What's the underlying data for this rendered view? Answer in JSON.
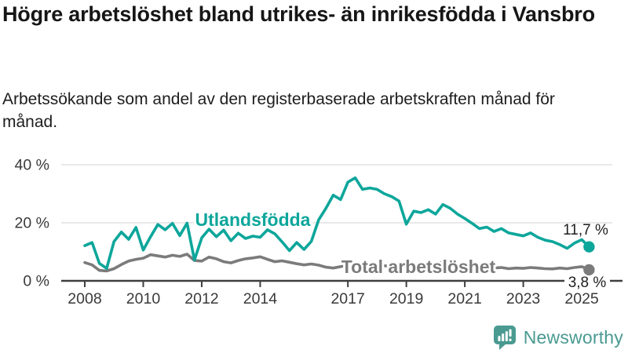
{
  "header": {
    "title": "Högre arbetslöshet bland utrikes- än inrikesfödda i Vansbro",
    "subtitle": "Arbetssökande som andel av den registerbaserade arbetskraften månad för månad."
  },
  "footer": {
    "brand": "Newsworthy",
    "brand_color": "#4a9a91"
  },
  "chart_data": {
    "type": "line",
    "title": "Högre arbetslöshet bland utrikes- än inrikesfödda i Vansbro",
    "subtitle": "Arbetssökande som andel av den registerbaserade arbetskraften månad för månad.",
    "x_unit": "decimal_year",
    "x_start": 2008.0,
    "x_step": 0.25,
    "xlim": [
      2007.2,
      2026.0
    ],
    "ylim": [
      0,
      44
    ],
    "grid": "horizontal",
    "legend": "inline-labels",
    "xticks": [
      2008,
      2010,
      2012,
      2014,
      2017,
      2019,
      2021,
      2023,
      2025
    ],
    "yticks": [
      {
        "value": 0,
        "label": "0 %"
      },
      {
        "value": 20,
        "label": "20 %"
      },
      {
        "value": 40,
        "label": "40 %"
      }
    ],
    "series": [
      {
        "name": "Utlandsfödda",
        "color": "#0da69b",
        "end_label": "11,7 %",
        "end_value": 11.7,
        "values": [
          12.1,
          13.2,
          6.0,
          4.3,
          13.5,
          16.8,
          14.3,
          18.4,
          10.6,
          15.2,
          19.4,
          17.6,
          19.8,
          15.6,
          19.9,
          7.2,
          14.8,
          17.8,
          15.2,
          17.5,
          13.8,
          16.4,
          14.6,
          15.4,
          15.0,
          17.6,
          16.2,
          13.4,
          10.4,
          13.2,
          10.8,
          13.6,
          21.0,
          25.0,
          29.5,
          28.0,
          34.0,
          35.5,
          31.5,
          32.0,
          31.5,
          30.0,
          29.0,
          27.5,
          19.5,
          24.0,
          23.5,
          24.5,
          23.0,
          26.3,
          25.0,
          23.0,
          21.5,
          19.8,
          18.0,
          18.5,
          17.0,
          18.0,
          16.5,
          16.0,
          15.5,
          16.5,
          15.0,
          14.0,
          13.5,
          12.5,
          11.2,
          13.0,
          14.2,
          11.7
        ]
      },
      {
        "name": "Total arbetslöshet",
        "color": "#7b7b7b",
        "end_label": "3,8 %",
        "end_value": 3.8,
        "values": [
          6.3,
          5.5,
          3.6,
          3.4,
          4.2,
          5.6,
          6.8,
          7.4,
          7.8,
          9.0,
          8.6,
          8.2,
          8.8,
          8.4,
          9.2,
          7.0,
          6.8,
          8.2,
          7.6,
          6.6,
          6.2,
          7.0,
          7.6,
          7.9,
          8.3,
          7.4,
          6.6,
          6.9,
          6.4,
          5.9,
          5.5,
          5.8,
          5.4,
          4.7,
          4.4,
          4.9,
          5.3,
          5.7,
          5.4,
          5.8,
          5.6,
          5.2,
          5.0,
          4.8,
          5.0,
          5.3,
          5.1,
          5.4,
          5.8,
          6.5,
          6.2,
          5.8,
          5.6,
          5.2,
          4.8,
          4.6,
          4.4,
          4.6,
          4.2,
          4.4,
          4.3,
          4.6,
          4.4,
          4.2,
          4.1,
          4.4,
          4.2,
          4.6,
          4.9,
          3.8
        ]
      }
    ]
  }
}
